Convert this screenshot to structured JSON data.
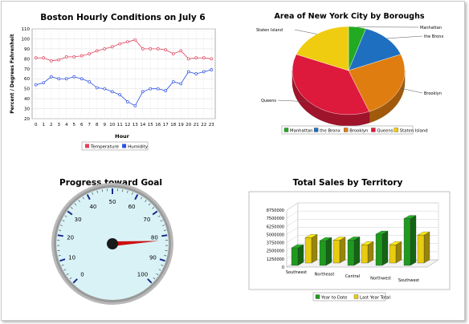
{
  "chart_data": [
    {
      "type": "line",
      "title": "Boston Hourly Conditions on July 6",
      "xlabel": "Hour",
      "ylabel": "Percent / Degrees Fahrenheit",
      "x": [
        0,
        1,
        2,
        3,
        4,
        5,
        6,
        7,
        8,
        9,
        10,
        11,
        12,
        13,
        14,
        15,
        16,
        17,
        18,
        19,
        20,
        21,
        22,
        23
      ],
      "ylim": [
        20,
        110
      ],
      "yticks": [
        20,
        30,
        40,
        50,
        60,
        70,
        80,
        90,
        100,
        110
      ],
      "grid": true,
      "legend_position": "bottom",
      "series": [
        {
          "name": "Temperature",
          "color": "#e0405a",
          "values": [
            81,
            81,
            78,
            79,
            82,
            82,
            83,
            85,
            88,
            90,
            92,
            95,
            97,
            99,
            90,
            90,
            90,
            89,
            85,
            88,
            80,
            81,
            81,
            80
          ]
        },
        {
          "name": "Humidity",
          "color": "#2a4fe0",
          "values": [
            54,
            56,
            62,
            60,
            60,
            62,
            60,
            57,
            51,
            50,
            47,
            44,
            37,
            33,
            47,
            50,
            50,
            48,
            57,
            55,
            67,
            65,
            67,
            69
          ]
        }
      ]
    },
    {
      "type": "pie",
      "title": "Area of New York City by Boroughs",
      "legend_position": "bottom",
      "series": [
        {
          "name": "Manhattan",
          "value": 5,
          "color": "#22aa22"
        },
        {
          "name": "the Bronx",
          "value": 14,
          "color": "#1f6fc0"
        },
        {
          "name": "Brooklyn",
          "value": 25,
          "color": "#e07d10"
        },
        {
          "name": "Queens",
          "value": 37,
          "color": "#dd1a3c"
        },
        {
          "name": "Staten Island",
          "value": 19,
          "color": "#f0cc10"
        }
      ]
    },
    {
      "type": "gauge",
      "title": "Progress toward Goal",
      "min": 0,
      "max": 100,
      "ticks": [
        0,
        10,
        20,
        30,
        40,
        50,
        60,
        70,
        80,
        90,
        100
      ],
      "value": 82
    },
    {
      "type": "bar",
      "title": "Total Sales by Territory",
      "categories": [
        "Southwest",
        "Northeast",
        "Central",
        "Northwest",
        "Southwest"
      ],
      "ylim": [
        0,
        8750000
      ],
      "yticks": [
        "0",
        "1250000",
        "2500000",
        "3750000",
        "5000000",
        "6250000",
        "7500000",
        "8750000"
      ],
      "legend_position": "bottom",
      "series": [
        {
          "name": "Year to Date",
          "color": "#1f9a1f",
          "values": [
            2700000,
            3800000,
            3900000,
            4800000,
            7200000
          ]
        },
        {
          "name": "Last Year Total",
          "color": "#e8cc10",
          "values": [
            3900000,
            3500000,
            2800000,
            2800000,
            4300000
          ]
        }
      ]
    }
  ]
}
